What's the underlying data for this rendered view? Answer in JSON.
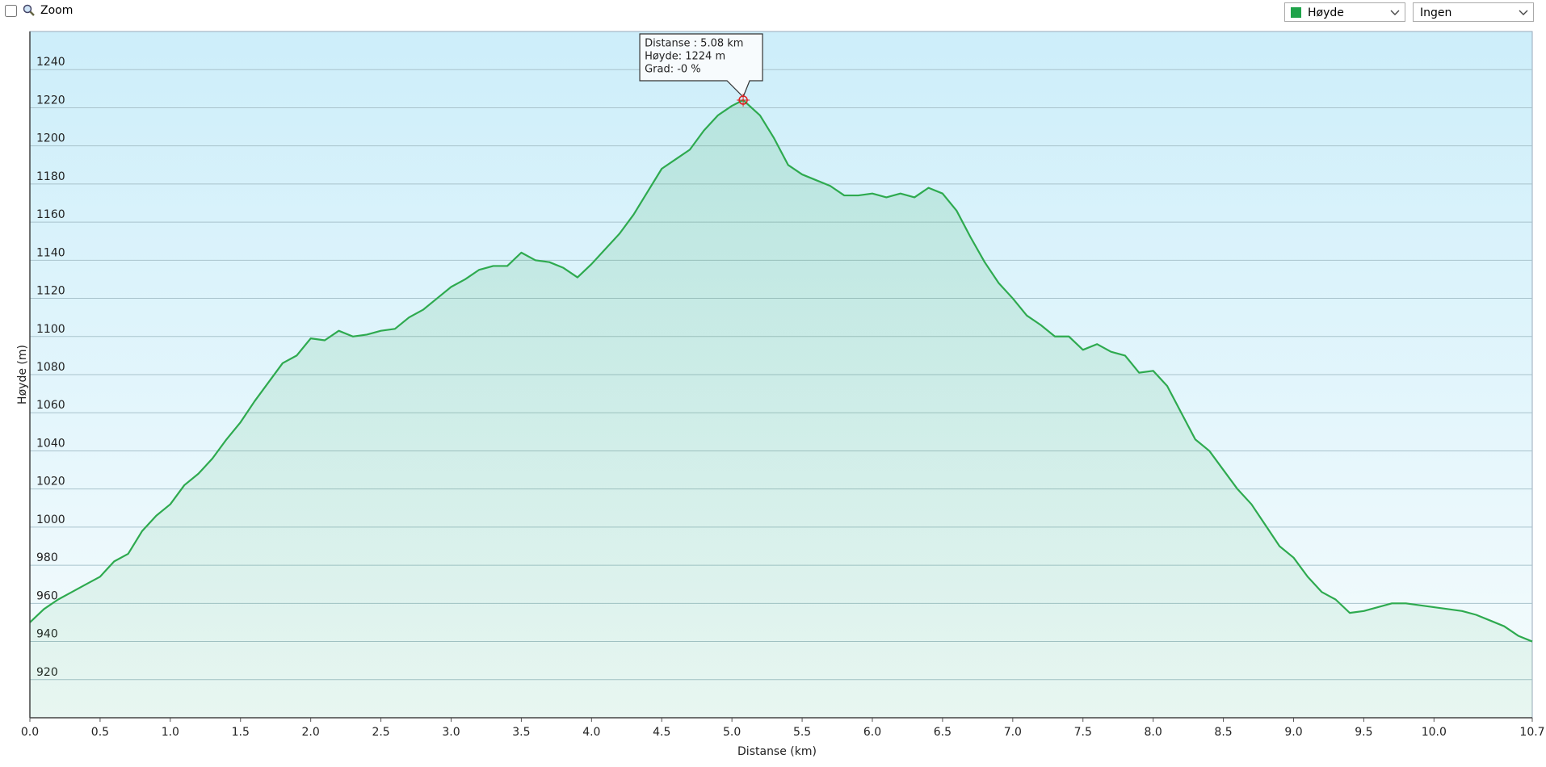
{
  "toolbar": {
    "zoom_label": "Zoom",
    "series_select": "Høyde",
    "secondary_select": "Ingen"
  },
  "chart_data": {
    "type": "area-line",
    "x_label": "Distanse  (km)",
    "y_label": "Høyde (m)",
    "xlim": [
      0,
      10.7
    ],
    "ylim": [
      900,
      1260
    ],
    "xticks": [
      {
        "value": 0,
        "label": "0.0"
      },
      0.5,
      {
        "value": 1,
        "label": "1.0"
      },
      1.5,
      {
        "value": 2,
        "label": "2.0"
      },
      2.5,
      {
        "value": 3,
        "label": "3.0"
      },
      3.5,
      {
        "value": 4,
        "label": "4.0"
      },
      4.5,
      {
        "value": 5,
        "label": "5.0"
      },
      5.5,
      {
        "value": 6,
        "label": "6.0"
      },
      6.5,
      {
        "value": 7,
        "label": "7.0"
      },
      7.5,
      {
        "value": 8,
        "label": "8.0"
      },
      8.5,
      {
        "value": 9,
        "label": "9.0"
      },
      9.5,
      {
        "value": 10,
        "label": "10.0"
      },
      10.7
    ],
    "yticks": [
      920,
      940,
      960,
      980,
      1000,
      1020,
      1040,
      1060,
      1080,
      1100,
      1120,
      1140,
      1160,
      1180,
      1200,
      1220,
      1240
    ],
    "grid": true,
    "x": [
      0,
      0.1,
      0.2,
      0.3,
      0.4,
      0.5,
      0.6,
      0.7,
      0.8,
      0.9,
      1.0,
      1.1,
      1.2,
      1.3,
      1.4,
      1.5,
      1.6,
      1.7,
      1.8,
      1.9,
      2.0,
      2.1,
      2.2,
      2.3,
      2.4,
      2.5,
      2.6,
      2.7,
      2.8,
      2.9,
      3.0,
      3.1,
      3.2,
      3.3,
      3.4,
      3.5,
      3.6,
      3.7,
      3.8,
      3.9,
      4.0,
      4.1,
      4.2,
      4.3,
      4.4,
      4.5,
      4.6,
      4.7,
      4.8,
      4.9,
      5.0,
      5.08,
      5.2,
      5.3,
      5.4,
      5.5,
      5.6,
      5.7,
      5.8,
      5.9,
      6.0,
      6.1,
      6.2,
      6.3,
      6.4,
      6.5,
      6.6,
      6.7,
      6.8,
      6.9,
      7.0,
      7.1,
      7.2,
      7.3,
      7.4,
      7.5,
      7.6,
      7.7,
      7.8,
      7.9,
      8.0,
      8.1,
      8.2,
      8.3,
      8.4,
      8.5,
      8.6,
      8.7,
      8.8,
      8.9,
      9.0,
      9.1,
      9.2,
      9.3,
      9.4,
      9.5,
      9.6,
      9.7,
      9.8,
      9.9,
      10.0,
      10.1,
      10.2,
      10.3,
      10.4,
      10.5,
      10.6,
      10.7
    ],
    "series": [
      {
        "name": "Høyde",
        "color": "#2eaa4f",
        "values": [
          950,
          957,
          962,
          966,
          970,
          974,
          982,
          986,
          998,
          1006,
          1012,
          1022,
          1028,
          1036,
          1046,
          1055,
          1066,
          1076,
          1086,
          1090,
          1099,
          1098,
          1103,
          1100,
          1101,
          1103,
          1104,
          1110,
          1114,
          1120,
          1126,
          1130,
          1135,
          1137,
          1137,
          1144,
          1140,
          1139,
          1136,
          1131,
          1138,
          1146,
          1154,
          1164,
          1176,
          1188,
          1193,
          1198,
          1208,
          1216,
          1221,
          1224,
          1216,
          1204,
          1190,
          1185,
          1182,
          1179,
          1174,
          1174,
          1175,
          1173,
          1175,
          1173,
          1178,
          1175,
          1166,
          1152,
          1139,
          1128,
          1120,
          1111,
          1106,
          1100,
          1100,
          1093,
          1096,
          1092,
          1090,
          1081,
          1082,
          1074,
          1060,
          1046,
          1040,
          1030,
          1020,
          1012,
          1001,
          990,
          984,
          974,
          966,
          962,
          955,
          956,
          958,
          960,
          960,
          959,
          958,
          957,
          956,
          954,
          951,
          948,
          943,
          940
        ]
      }
    ],
    "annotation": {
      "x": 5.08,
      "y": 1224,
      "lines": [
        "Distanse  : 5.08 km",
        "Høyde: 1224 m",
        "Grad: -0 %"
      ]
    }
  }
}
